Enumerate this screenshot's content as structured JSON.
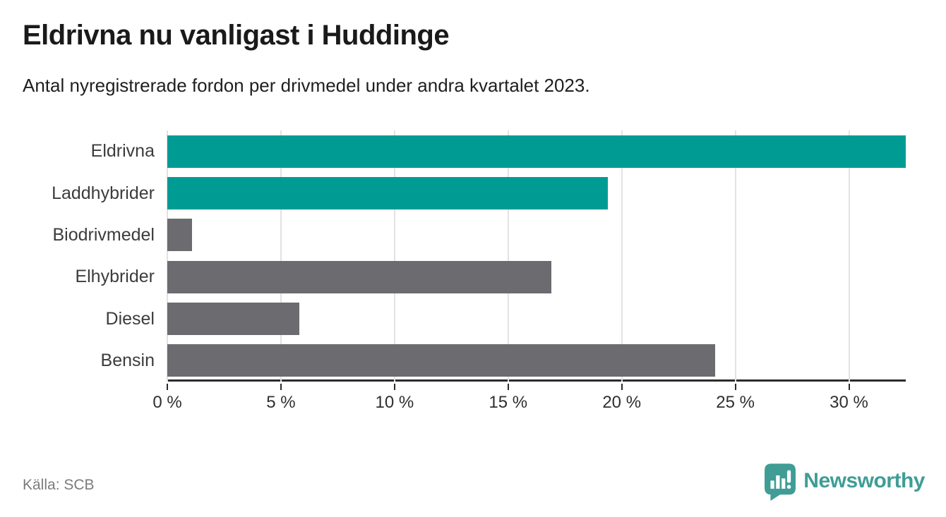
{
  "header": {
    "title": "Eldrivna nu vanligast i Huddinge",
    "subtitle": "Antal nyregistrerade fordon per drivmedel under andra kvartalet 2023."
  },
  "chart_data": {
    "type": "bar",
    "orientation": "horizontal",
    "categories": [
      "Eldrivna",
      "Laddhybrider",
      "Biodrivmedel",
      "Elhybrider",
      "Diesel",
      "Bensin"
    ],
    "values": [
      32.5,
      19.4,
      1.1,
      16.9,
      5.8,
      24.1
    ],
    "unit": "%",
    "xlim": [
      0,
      32.5
    ],
    "x_ticks": [
      0,
      5,
      10,
      15,
      20,
      25,
      30
    ],
    "x_tick_labels": [
      "0 %",
      "5 %",
      "10 %",
      "15 %",
      "20 %",
      "25 %",
      "30 %"
    ],
    "bar_colors": [
      "#009c94",
      "#009c94",
      "#6b6b70",
      "#6b6b70",
      "#6b6b70",
      "#6b6b70"
    ],
    "highlight_color": "#009c94",
    "default_color": "#6b6b70",
    "gridline_color": "#e2e2e2",
    "axis_color": "#2b2b2b",
    "grid": true,
    "legend": "none",
    "title": "Eldrivna nu vanligast i Huddinge",
    "xlabel": "",
    "ylabel": ""
  },
  "footer": {
    "source": "Källa: SCB",
    "brand": "Newsworthy",
    "brand_color": "#3f9d96"
  }
}
